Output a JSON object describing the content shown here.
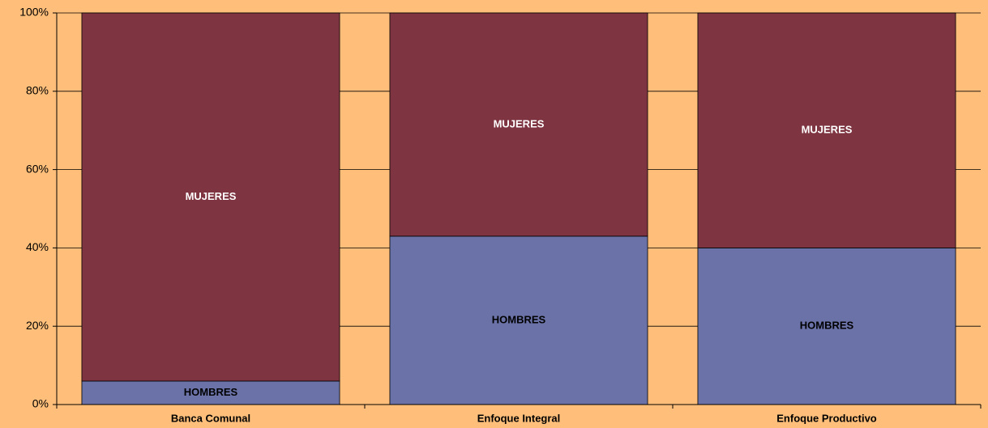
{
  "chart_data": {
    "type": "stacked-bar",
    "categories": [
      "Banca Comunal",
      "Enfoque Integral",
      "Enfoque Productivo"
    ],
    "series": [
      {
        "name": "HOMBRES",
        "color": "#6a72a8",
        "values": [
          6,
          43,
          40
        ]
      },
      {
        "name": "MUJERES",
        "color": "#7f3541",
        "values": [
          94,
          57,
          60
        ]
      }
    ],
    "ylim": [
      0,
      100
    ],
    "yticks": [
      {
        "value": 0,
        "label": "0%"
      },
      {
        "value": 20,
        "label": "20%"
      },
      {
        "value": 40,
        "label": "40%"
      },
      {
        "value": 60,
        "label": "60%"
      },
      {
        "value": 80,
        "label": "80%"
      },
      {
        "value": 100,
        "label": "100%"
      }
    ],
    "grid": true
  }
}
